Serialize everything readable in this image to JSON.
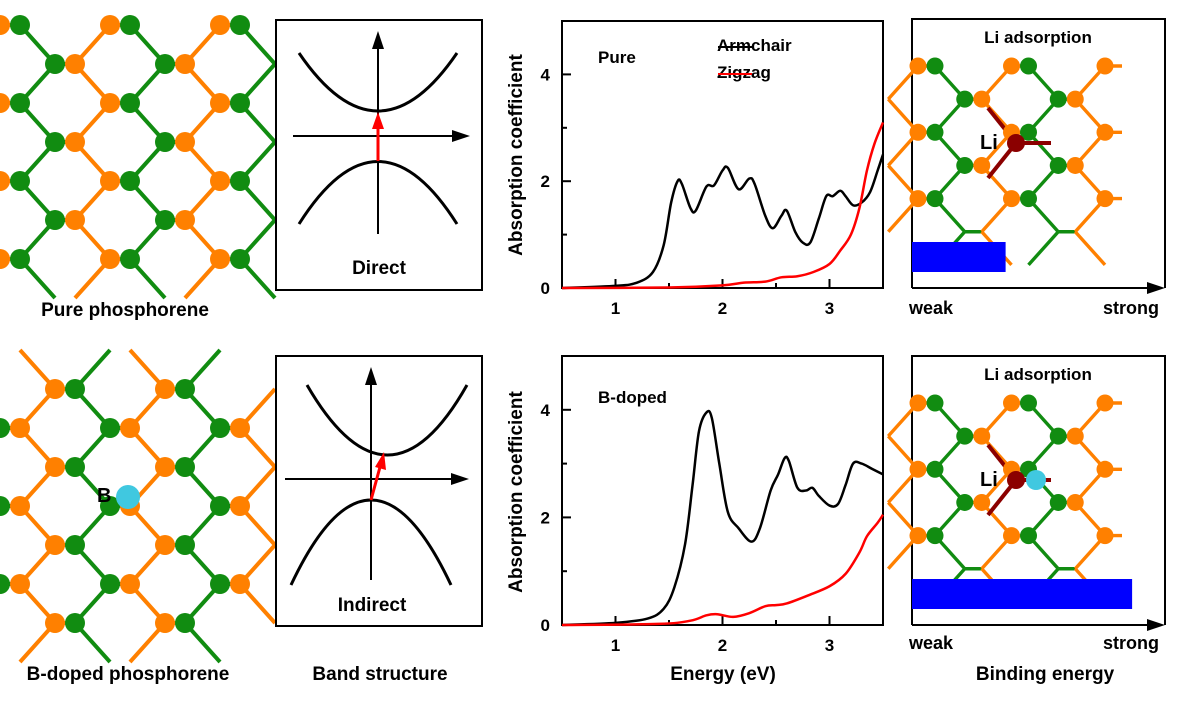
{
  "panels": {
    "structure": {
      "pure_caption": "Pure phosphorene",
      "doped_caption": "B-doped phosphorene",
      "dopant_label": "B",
      "colors": {
        "p_a": "#ff8000",
        "p_b": "#118c11",
        "boron": "#40c8e0",
        "lithium": "#8b0000"
      }
    },
    "band": {
      "caption": "Band structure",
      "top_label": "Direct",
      "bottom_label": "Indirect",
      "transition_color": "#ff0000"
    },
    "binding": {
      "caption": "Binding energy",
      "title": "Li adsorption",
      "li_label": "Li",
      "weak_label": "weak",
      "strong_label": "strong",
      "bar_color": "#0000ff",
      "pure_level": 0.37,
      "doped_level": 0.87
    }
  },
  "chart_data": [
    {
      "type": "line",
      "annotation": "Pure",
      "ylabel": "Absorption coefficient",
      "xlabel": "",
      "xlim": [
        0.5,
        3.5
      ],
      "ylim": [
        0,
        5
      ],
      "xticks": [
        "1",
        "2",
        "3"
      ],
      "yticks": [
        "0",
        "2",
        "4"
      ],
      "legend": "top-right",
      "series": [
        {
          "name": "Armchair",
          "color": "#000000",
          "points": [
            [
              0.5,
              0
            ],
            [
              1,
              0.04
            ],
            [
              1.2,
              0.1
            ],
            [
              1.35,
              0.3
            ],
            [
              1.45,
              0.8
            ],
            [
              1.52,
              1.6
            ],
            [
              1.58,
              2.0
            ],
            [
              1.62,
              1.95
            ],
            [
              1.7,
              1.5
            ],
            [
              1.75,
              1.45
            ],
            [
              1.85,
              1.9
            ],
            [
              1.92,
              1.92
            ],
            [
              2.0,
              2.2
            ],
            [
              2.05,
              2.25
            ],
            [
              2.15,
              1.85
            ],
            [
              2.25,
              2.05
            ],
            [
              2.3,
              1.95
            ],
            [
              2.4,
              1.35
            ],
            [
              2.47,
              1.12
            ],
            [
              2.55,
              1.35
            ],
            [
              2.6,
              1.45
            ],
            [
              2.68,
              1.05
            ],
            [
              2.75,
              0.85
            ],
            [
              2.82,
              0.85
            ],
            [
              2.9,
              1.3
            ],
            [
              2.97,
              1.72
            ],
            [
              3.03,
              1.72
            ],
            [
              3.1,
              1.82
            ],
            [
              3.15,
              1.72
            ],
            [
              3.22,
              1.55
            ],
            [
              3.3,
              1.6
            ],
            [
              3.38,
              1.8
            ],
            [
              3.45,
              2.2
            ],
            [
              3.5,
              2.5
            ]
          ]
        },
        {
          "name": "Zigzag",
          "color": "#ff0000",
          "points": [
            [
              0.5,
              0
            ],
            [
              1.5,
              0.01
            ],
            [
              2.0,
              0.05
            ],
            [
              2.2,
              0.1
            ],
            [
              2.4,
              0.12
            ],
            [
              2.55,
              0.2
            ],
            [
              2.7,
              0.22
            ],
            [
              2.85,
              0.3
            ],
            [
              3.0,
              0.45
            ],
            [
              3.1,
              0.7
            ],
            [
              3.2,
              1.0
            ],
            [
              3.28,
              1.5
            ],
            [
              3.35,
              2.2
            ],
            [
              3.42,
              2.7
            ],
            [
              3.5,
              3.1
            ]
          ]
        }
      ]
    },
    {
      "type": "line",
      "annotation": "B-doped",
      "ylabel": "Absorption coefficient",
      "xlabel": "Energy (eV)",
      "xlim": [
        0.5,
        3.5
      ],
      "ylim": [
        0,
        5
      ],
      "xticks": [
        "1",
        "2",
        "3"
      ],
      "yticks": [
        "0",
        "2",
        "4"
      ],
      "series": [
        {
          "name": "Armchair",
          "color": "#000000",
          "points": [
            [
              0.5,
              0
            ],
            [
              1,
              0.04
            ],
            [
              1.3,
              0.12
            ],
            [
              1.45,
              0.3
            ],
            [
              1.55,
              0.7
            ],
            [
              1.65,
              1.5
            ],
            [
              1.72,
              2.6
            ],
            [
              1.78,
              3.6
            ],
            [
              1.85,
              3.95
            ],
            [
              1.9,
              3.85
            ],
            [
              1.97,
              3.0
            ],
            [
              2.05,
              2.1
            ],
            [
              2.15,
              1.8
            ],
            [
              2.27,
              1.55
            ],
            [
              2.35,
              1.8
            ],
            [
              2.45,
              2.5
            ],
            [
              2.52,
              2.8
            ],
            [
              2.58,
              3.1
            ],
            [
              2.62,
              3.05
            ],
            [
              2.7,
              2.55
            ],
            [
              2.78,
              2.5
            ],
            [
              2.84,
              2.55
            ],
            [
              2.9,
              2.4
            ],
            [
              3.0,
              2.22
            ],
            [
              3.08,
              2.25
            ],
            [
              3.15,
              2.6
            ],
            [
              3.22,
              3.0
            ],
            [
              3.3,
              3.0
            ],
            [
              3.4,
              2.9
            ],
            [
              3.5,
              2.8
            ]
          ]
        },
        {
          "name": "Zigzag",
          "color": "#ff0000",
          "points": [
            [
              0.5,
              0
            ],
            [
              1.4,
              0.02
            ],
            [
              1.7,
              0.08
            ],
            [
              1.85,
              0.18
            ],
            [
              1.95,
              0.2
            ],
            [
              2.1,
              0.15
            ],
            [
              2.25,
              0.22
            ],
            [
              2.4,
              0.35
            ],
            [
              2.5,
              0.37
            ],
            [
              2.6,
              0.4
            ],
            [
              2.8,
              0.55
            ],
            [
              3.0,
              0.72
            ],
            [
              3.15,
              0.95
            ],
            [
              3.28,
              1.35
            ],
            [
              3.35,
              1.65
            ],
            [
              3.45,
              1.9
            ],
            [
              3.5,
              2.05
            ]
          ]
        }
      ]
    }
  ]
}
